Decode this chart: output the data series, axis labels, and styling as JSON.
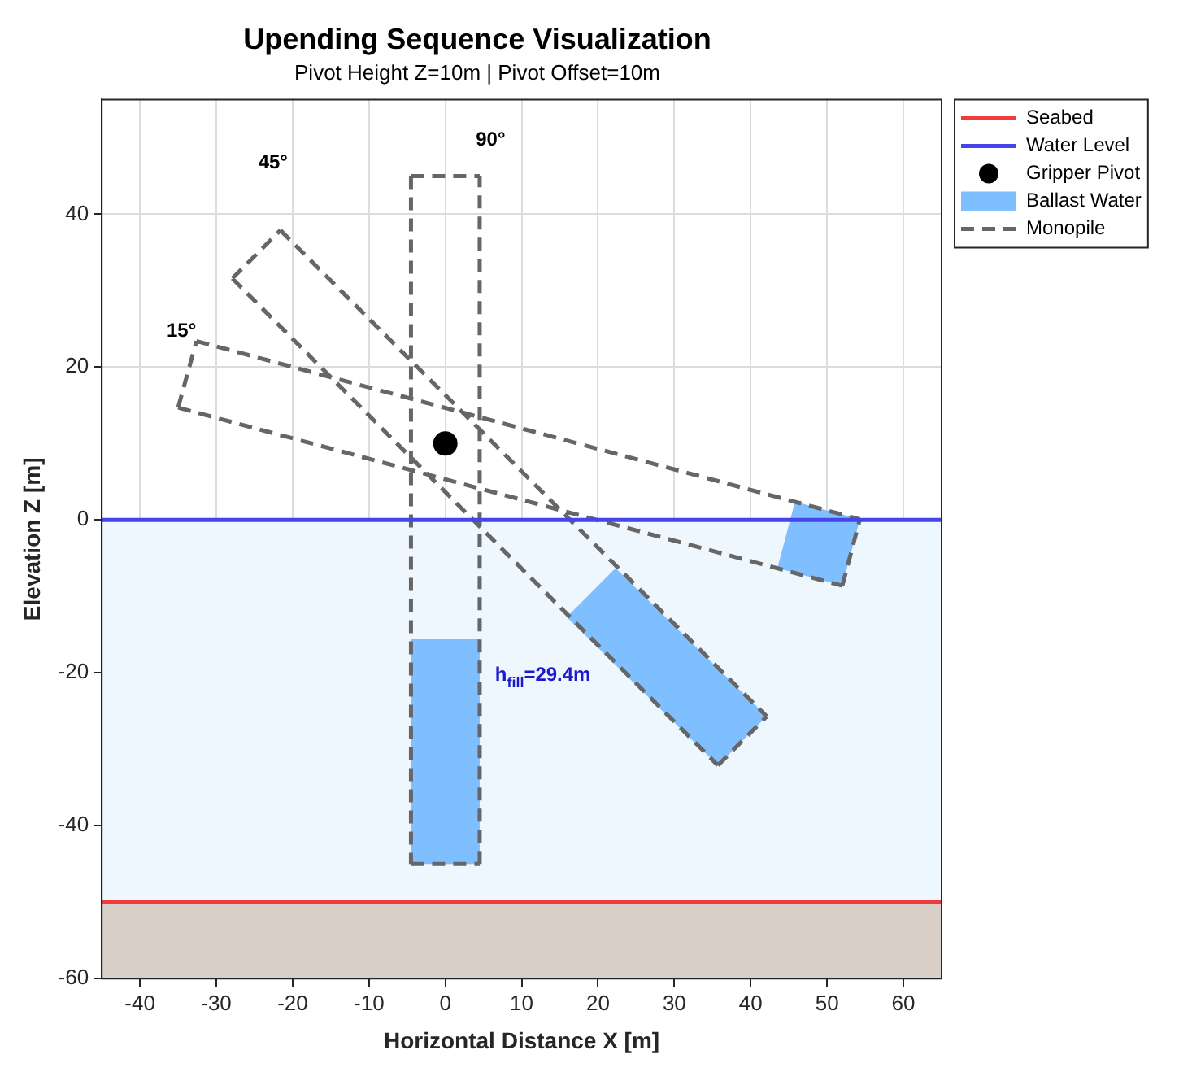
{
  "chart_data": {
    "type": "line",
    "title": "Upending Sequence Visualization",
    "subtitle": "Pivot Height Z=10m | Pivot Offset=10m",
    "xlabel": "Horizontal Distance X [m]",
    "ylabel": "Elevation Z [m]",
    "xlim": [
      -45,
      65
    ],
    "xticks": [
      -40,
      -30,
      -20,
      -10,
      0,
      10,
      20,
      30,
      40,
      50,
      60
    ],
    "ylim": [
      -60,
      55
    ],
    "yticks": [
      -60,
      -40,
      -20,
      0,
      20,
      40
    ],
    "grid": true,
    "legend": "top right",
    "bands": [
      {
        "axis": "y",
        "from": -50,
        "to": 0,
        "color": "#eef6fe"
      },
      {
        "axis": "y",
        "from": -60,
        "to": -50,
        "color": "#d9d0c9"
      }
    ],
    "series": [
      {
        "name": "Seabed",
        "type": "line",
        "color": "#f03c3c",
        "x": [
          -45,
          65
        ],
        "values": [
          -50,
          -50
        ]
      },
      {
        "name": "Water Level",
        "type": "line",
        "color": "#4545e8",
        "x": [
          -45,
          65
        ],
        "values": [
          0,
          0
        ]
      },
      {
        "name": "Gripper Pivot",
        "type": "scatter",
        "marker": "circle",
        "color": "#000000",
        "x": [
          0
        ],
        "values": [
          10
        ]
      },
      {
        "name": "Ballast Water",
        "type": "area",
        "color": "#80bfff",
        "x": [
          -4.5,
          4.5,
          4.5,
          -4.5,
          -4.5,
          null,
          15.9,
          22.3,
          42.1,
          35.7,
          15.9,
          null,
          45.8,
          54.3,
          52,
          43.5,
          45.8
        ],
        "values": [
          -45,
          -45,
          -15.6,
          -15.6,
          -45,
          null,
          -12.7,
          -6.3,
          -25.7,
          -32.1,
          -12.7,
          null,
          2.4,
          0.1,
          -8.6,
          -6.3,
          2.4
        ]
      },
      {
        "name": "Monopile",
        "type": "line",
        "line_style": "dashed",
        "color": "#666666",
        "x": [
          -4.5,
          4.5,
          null,
          4.5,
          4.5,
          null,
          -4.5,
          4.5,
          null,
          -4.5,
          -4.5,
          null,
          -21.6,
          42.1,
          null,
          35.7,
          42.1,
          null,
          -27.9,
          35.7,
          null,
          -27.9,
          -21.6,
          null,
          -32.6,
          54.3,
          null,
          52,
          54.3,
          null,
          -35,
          52,
          null,
          -35,
          -32.6
        ],
        "values": [
          -45,
          -45,
          null,
          -45,
          45,
          null,
          45,
          45,
          null,
          45,
          -45,
          null,
          37.9,
          -25.7,
          null,
          -32.1,
          -25.7,
          null,
          31.6,
          -32.1,
          null,
          31.6,
          37.9,
          null,
          23.4,
          0.1,
          null,
          -8.6,
          0.1,
          null,
          14.7,
          -8.6,
          null,
          14.7,
          23.4
        ]
      }
    ],
    "annotations": [
      "90°",
      "45°",
      "15°",
      "h$_{fill}$=29.4m"
    ]
  }
}
